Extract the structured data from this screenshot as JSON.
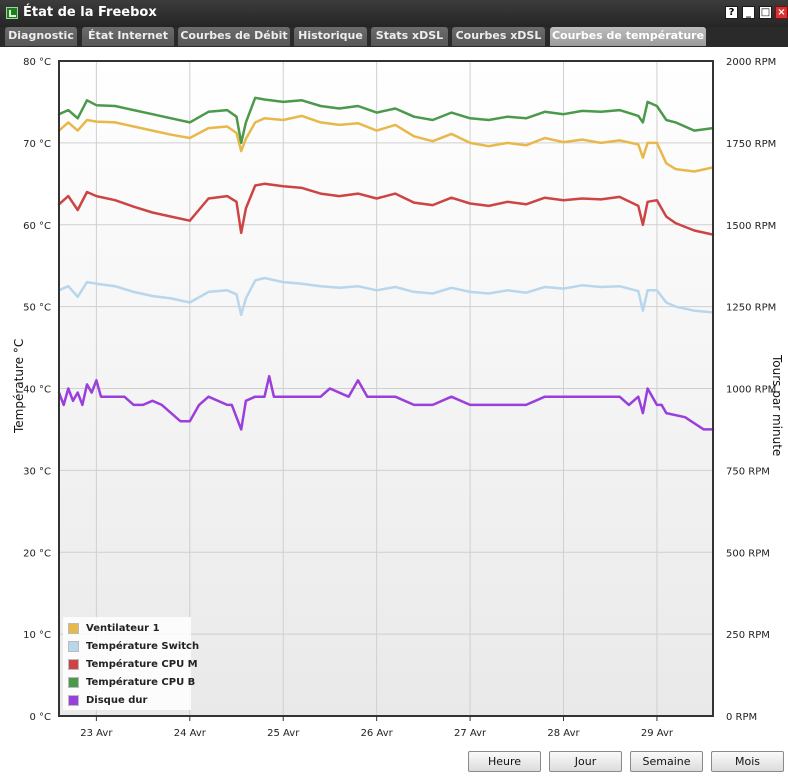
{
  "window": {
    "title": "État de la Freebox"
  },
  "window_controls": {
    "help": "?",
    "minimize": "_",
    "maximize": "□",
    "close": "×"
  },
  "tabs": [
    {
      "label": "Diagnostic",
      "active": false
    },
    {
      "label": "État Internet",
      "active": false
    },
    {
      "label": "Courbes de Débit",
      "active": false
    },
    {
      "label": "Historique",
      "active": false
    },
    {
      "label": "Stats xDSL",
      "active": false
    },
    {
      "label": "Courbes xDSL",
      "active": false
    },
    {
      "label": "Courbes de température",
      "active": true
    }
  ],
  "buttons": {
    "hour": "Heure",
    "day": "Jour",
    "week": "Semaine",
    "month": "Mois"
  },
  "chart_data": {
    "type": "line",
    "ylabel": "Température °C",
    "y2label": "Tours par minute",
    "ylim": [
      0,
      80
    ],
    "y2lim": [
      0,
      2000
    ],
    "yticks": [
      "0 °C",
      "10 °C",
      "20 °C",
      "30 °C",
      "40 °C",
      "50 °C",
      "60 °C",
      "70 °C",
      "80 °C"
    ],
    "y2ticks": [
      "0 RPM",
      "250 RPM",
      "500 RPM",
      "750 RPM",
      "1000 RPM",
      "1250 RPM",
      "1500 RPM",
      "1750 RPM",
      "2000 RPM"
    ],
    "xlim": [
      22.6,
      29.6
    ],
    "xticks": [
      23,
      24,
      25,
      26,
      27,
      28,
      29
    ],
    "xticklabels": [
      "23 Avr",
      "24 Avr",
      "25 Avr",
      "26 Avr",
      "27 Avr",
      "28 Avr",
      "29 Avr"
    ],
    "grid": true,
    "legend_position": "bottom-left",
    "series": [
      {
        "name": "Ventilateur 1",
        "color": "#e8b84a",
        "axis": "left",
        "x": [
          22.6,
          22.7,
          22.8,
          22.9,
          23.0,
          23.2,
          23.4,
          23.6,
          23.8,
          24.0,
          24.2,
          24.4,
          24.5,
          24.55,
          24.6,
          24.7,
          24.8,
          25.0,
          25.2,
          25.4,
          25.6,
          25.8,
          26.0,
          26.2,
          26.4,
          26.6,
          26.8,
          27.0,
          27.2,
          27.4,
          27.6,
          27.8,
          28.0,
          28.2,
          28.4,
          28.6,
          28.8,
          28.85,
          28.9,
          29.0,
          29.1,
          29.2,
          29.4,
          29.6
        ],
        "y": [
          71.5,
          72.5,
          71.5,
          72.8,
          72.6,
          72.5,
          72,
          71.5,
          71,
          70.6,
          71.8,
          72,
          71.2,
          69,
          70.5,
          72.5,
          73,
          72.8,
          73.3,
          72.5,
          72.2,
          72.4,
          71.5,
          72.2,
          70.8,
          70.2,
          71.1,
          70,
          69.6,
          70,
          69.7,
          70.6,
          70.1,
          70.4,
          70,
          70.3,
          69.8,
          68.2,
          70,
          70,
          67.5,
          66.8,
          66.5,
          67
        ]
      },
      {
        "name": "Température Switch",
        "color": "#b8d6ec",
        "axis": "left",
        "x": [
          22.6,
          22.7,
          22.8,
          22.9,
          23.0,
          23.2,
          23.4,
          23.6,
          23.8,
          24.0,
          24.2,
          24.4,
          24.5,
          24.55,
          24.6,
          24.7,
          24.8,
          25.0,
          25.2,
          25.4,
          25.6,
          25.8,
          26.0,
          26.2,
          26.4,
          26.6,
          26.8,
          27.0,
          27.2,
          27.4,
          27.6,
          27.8,
          28.0,
          28.2,
          28.4,
          28.6,
          28.8,
          28.85,
          28.9,
          29.0,
          29.1,
          29.2,
          29.4,
          29.6
        ],
        "y": [
          52,
          52.5,
          51.2,
          53,
          52.8,
          52.5,
          51.8,
          51.3,
          51,
          50.5,
          51.8,
          52,
          51.5,
          49,
          51,
          53.2,
          53.5,
          53,
          52.8,
          52.5,
          52.3,
          52.5,
          52,
          52.4,
          51.8,
          51.6,
          52.3,
          51.8,
          51.6,
          52,
          51.7,
          52.4,
          52.2,
          52.6,
          52.4,
          52.5,
          51.9,
          49.5,
          52,
          52,
          50.5,
          50,
          49.5,
          49.3
        ]
      },
      {
        "name": "Température CPU M",
        "color": "#cc4444",
        "axis": "left",
        "x": [
          22.6,
          22.7,
          22.8,
          22.9,
          23.0,
          23.2,
          23.4,
          23.6,
          23.8,
          24.0,
          24.2,
          24.4,
          24.5,
          24.55,
          24.6,
          24.7,
          24.8,
          25.0,
          25.2,
          25.4,
          25.6,
          25.8,
          26.0,
          26.2,
          26.4,
          26.6,
          26.8,
          27.0,
          27.2,
          27.4,
          27.6,
          27.8,
          28.0,
          28.2,
          28.4,
          28.6,
          28.8,
          28.85,
          28.9,
          29.0,
          29.1,
          29.2,
          29.4,
          29.6
        ],
        "y": [
          62.5,
          63.5,
          61.8,
          64,
          63.5,
          63,
          62.2,
          61.5,
          61,
          60.5,
          63.2,
          63.5,
          62.8,
          59,
          62,
          64.8,
          65,
          64.7,
          64.5,
          63.8,
          63.5,
          63.8,
          63.2,
          63.8,
          62.7,
          62.4,
          63.3,
          62.6,
          62.3,
          62.8,
          62.5,
          63.3,
          63,
          63.2,
          63.1,
          63.4,
          62.3,
          60,
          62.8,
          63,
          61,
          60.2,
          59.3,
          58.8
        ]
      },
      {
        "name": "Température CPU B",
        "color": "#4b9a4b",
        "axis": "left",
        "x": [
          22.6,
          22.7,
          22.8,
          22.9,
          23.0,
          23.2,
          23.4,
          23.6,
          23.8,
          24.0,
          24.2,
          24.4,
          24.5,
          24.55,
          24.6,
          24.7,
          24.8,
          25.0,
          25.2,
          25.4,
          25.6,
          25.8,
          26.0,
          26.2,
          26.4,
          26.6,
          26.8,
          27.0,
          27.2,
          27.4,
          27.6,
          27.8,
          28.0,
          28.2,
          28.4,
          28.6,
          28.8,
          28.85,
          28.9,
          29.0,
          29.1,
          29.2,
          29.4,
          29.6
        ],
        "y": [
          73.5,
          74,
          73,
          75.2,
          74.6,
          74.5,
          74,
          73.5,
          73,
          72.5,
          73.8,
          74,
          73.2,
          70,
          72.5,
          75.5,
          75.3,
          75,
          75.2,
          74.5,
          74.2,
          74.5,
          73.7,
          74.2,
          73.2,
          72.8,
          73.7,
          73,
          72.8,
          73.2,
          73,
          73.8,
          73.5,
          73.9,
          73.8,
          74,
          73.3,
          72.5,
          75,
          74.5,
          72.8,
          72.5,
          71.5,
          71.8
        ]
      },
      {
        "name": "Disque dur",
        "color": "#9a3edc",
        "axis": "left",
        "x": [
          22.6,
          22.65,
          22.7,
          22.75,
          22.8,
          22.85,
          22.9,
          22.95,
          23.0,
          23.05,
          23.2,
          23.3,
          23.4,
          23.5,
          23.6,
          23.7,
          23.8,
          23.9,
          24.0,
          24.1,
          24.2,
          24.4,
          24.45,
          24.55,
          24.6,
          24.7,
          24.8,
          24.85,
          24.9,
          25.0,
          25.2,
          25.4,
          25.5,
          25.7,
          25.8,
          25.9,
          26.0,
          26.2,
          26.4,
          26.6,
          26.8,
          27.0,
          27.2,
          27.4,
          27.6,
          27.8,
          28.0,
          28.2,
          28.4,
          28.6,
          28.7,
          28.8,
          28.85,
          28.9,
          29.0,
          29.05,
          29.1,
          29.3,
          29.5,
          29.6
        ],
        "y": [
          39.5,
          38,
          40,
          38.5,
          39.5,
          38,
          40.5,
          39.5,
          41,
          39,
          39,
          39,
          38,
          38,
          38.5,
          38,
          37,
          36,
          36,
          38,
          39,
          38,
          38,
          35,
          38.5,
          39,
          39,
          41.5,
          39,
          39,
          39,
          39,
          40,
          39,
          41,
          39,
          39,
          39,
          38,
          38,
          39,
          38,
          38,
          38,
          38,
          39,
          39,
          39,
          39,
          39,
          38,
          39,
          37,
          40,
          38,
          38,
          37,
          36.5,
          35,
          35
        ]
      }
    ]
  }
}
